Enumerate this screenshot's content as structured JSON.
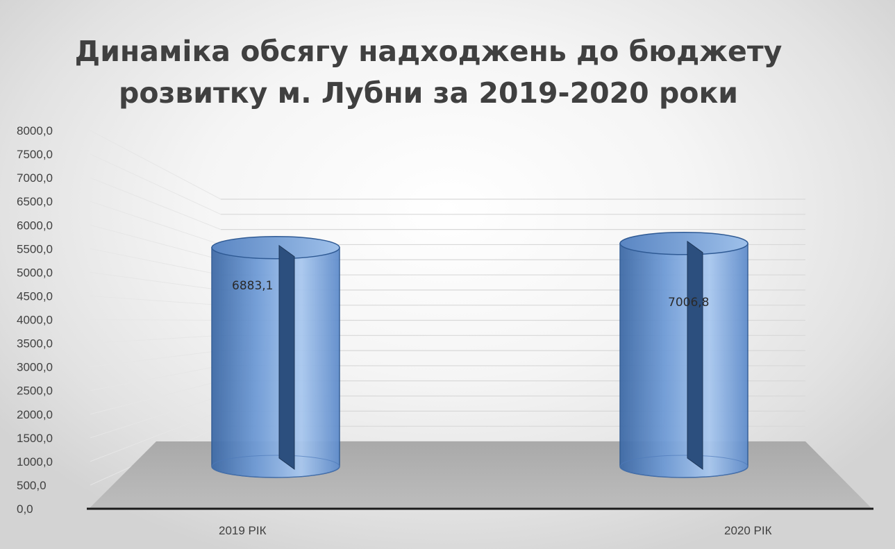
{
  "chart_data": {
    "type": "bar",
    "bar_shape": "cylinder-3d",
    "title": [
      "Динаміка обсягу надходжень до бюджету",
      "розвитку  м. Лубни за 2019-2020 роки"
    ],
    "categories": [
      "2019 РІК",
      "2020 РІК"
    ],
    "values": [
      6883.1,
      7006.8
    ],
    "data_labels": [
      "6883,1",
      "7006,8"
    ],
    "ylim": [
      0,
      8000
    ],
    "yticks": [
      "0,0",
      "500,0",
      "1000,0",
      "1500,0",
      "2000,0",
      "2500,0",
      "3000,0",
      "3500,0",
      "4000,0",
      "4500,0",
      "5000,0",
      "5500,0",
      "6000,0",
      "6500,0",
      "7000,0",
      "7500,0",
      "8000,0"
    ],
    "grid": true,
    "legend": "none",
    "colors": {
      "bar_light": "#a9c8ef",
      "bar_mid": "#6f9bd6",
      "bar_dark": "#2f5a94",
      "floor": "#b8b8b8",
      "axis": "#1a1a1a",
      "gridline": "#d8d8d8"
    }
  }
}
